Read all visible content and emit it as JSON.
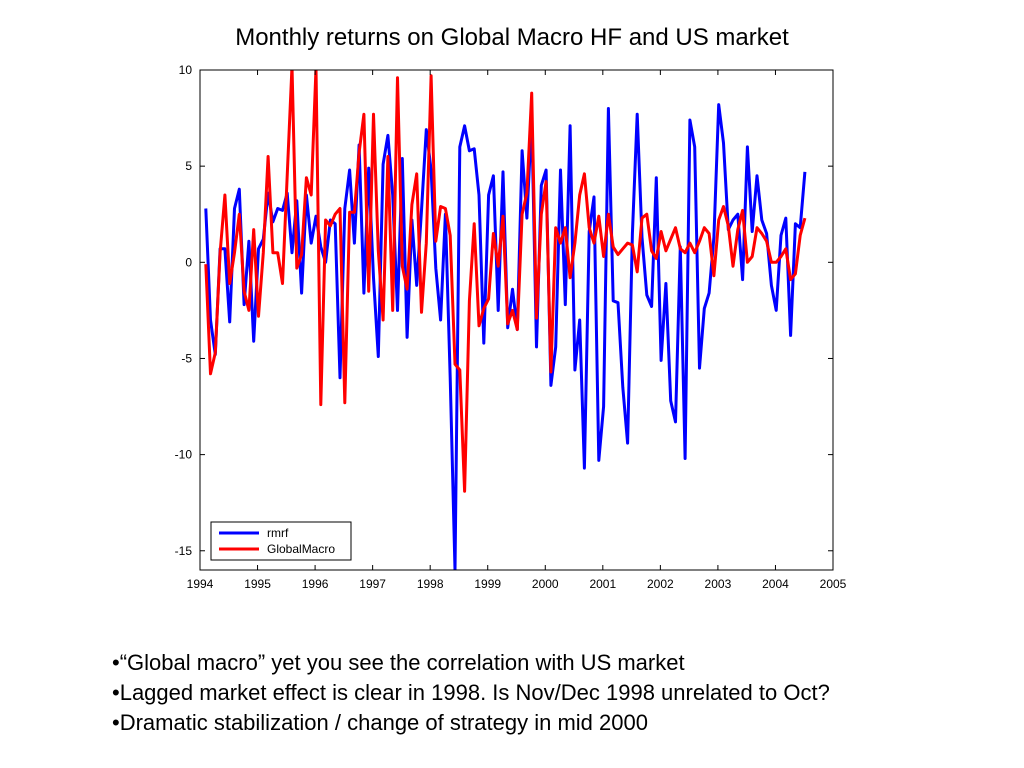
{
  "slide": {
    "bullets": [
      "•“Global macro” yet you see the correlation with US market",
      "•Lagged market effect is clear in 1998. Is Nov/Dec 1998 unrelated to Oct?",
      "•Dramatic stabilization / change of strategy in mid 2000"
    ]
  },
  "chart_data": {
    "type": "line",
    "title": "Monthly returns on Global Macro HF and US market",
    "xlabel": "",
    "ylabel": "",
    "xlim": [
      1994,
      2005
    ],
    "ylim": [
      -16,
      10
    ],
    "x_ticks": [
      "1994",
      "1995",
      "1996",
      "1997",
      "1998",
      "1999",
      "2000",
      "2001",
      "2002",
      "2003",
      "2004",
      "2005"
    ],
    "y_ticks": [
      10,
      5,
      0,
      -5,
      -10,
      -15
    ],
    "grid": false,
    "legend_position": "bottom-left",
    "series": [
      {
        "name": "rmrf",
        "color": "#0000ff",
        "x_start": 1994.1,
        "x_step": 0.0833,
        "values": [
          2.8,
          -3.0,
          -4.8,
          0.7,
          0.7,
          -3.1,
          2.8,
          3.8,
          -2.2,
          1.1,
          -4.1,
          0.7,
          1.2,
          3.6,
          2.1,
          2.8,
          2.7,
          3.6,
          0.5,
          3.2,
          -1.6,
          3.5,
          1.0,
          2.4,
          0.8,
          0.0,
          2.2,
          2.0,
          -6.0,
          2.8,
          4.8,
          1.0,
          6.1,
          -1.6,
          4.9,
          -0.8,
          -4.9,
          5.1,
          6.6,
          3.5,
          -2.5,
          5.4,
          -3.9,
          2.2,
          -1.2,
          2.7,
          6.9,
          4.8,
          -0.3,
          -3.0,
          2.5,
          -6.0,
          -16.0,
          6.0,
          7.1,
          5.8,
          5.9,
          3.5,
          -4.2,
          3.5,
          4.5,
          -2.5,
          4.7,
          -3.4,
          -1.4,
          -3.5,
          5.8,
          2.3,
          7.5,
          -4.4,
          4.0,
          4.8,
          -6.4,
          -4.4,
          4.8,
          -2.2,
          7.1,
          -5.6,
          -3.0,
          -10.7,
          1.6,
          3.4,
          -10.3,
          -7.5,
          8.0,
          -2.0,
          -2.1,
          -6.5,
          -9.4,
          1.5,
          7.7,
          1.3,
          -1.7,
          -2.3,
          4.4,
          -5.1,
          -1.1,
          -7.2,
          -8.3,
          0.8,
          -10.2,
          7.4,
          6.0,
          -5.5,
          -2.4,
          -1.6,
          1.3,
          8.2,
          6.2,
          1.7,
          2.2,
          2.5,
          -0.9,
          6.0,
          1.6,
          4.5,
          2.2,
          1.5,
          -1.2,
          -2.5,
          1.4,
          2.3,
          -3.8,
          2.0,
          1.8,
          4.7
        ]
      },
      {
        "name": "GlobalMacro",
        "color": "#ff0000",
        "x_start": 1994.1,
        "x_step": 0.0833,
        "values": [
          -0.1,
          -5.8,
          -4.7,
          0.5,
          3.5,
          -1.1,
          0.5,
          2.5,
          -1.5,
          -2.5,
          1.7,
          -2.8,
          0.5,
          5.5,
          0.5,
          0.5,
          -1.1,
          4.5,
          10.2,
          -0.3,
          0.4,
          4.4,
          3.5,
          10.1,
          -7.4,
          2.2,
          1.9,
          2.5,
          2.8,
          -7.3,
          2.6,
          2.6,
          5.7,
          7.7,
          -1.5,
          7.7,
          0.6,
          -3.0,
          5.5,
          -2.5,
          9.6,
          -0.2,
          -1.4,
          3.0,
          4.6,
          -2.6,
          1.0,
          9.7,
          1.1,
          2.9,
          2.8,
          1.4,
          -5.3,
          -5.6,
          -11.9,
          -2.0,
          2.0,
          -3.3,
          -2.4,
          -1.9,
          1.5,
          -0.2,
          2.4,
          -3.2,
          -2.5,
          -3.5,
          2.5,
          3.6,
          8.8,
          -2.9,
          2.5,
          4.2,
          -5.7,
          1.8,
          1.0,
          1.8,
          -0.8,
          1.0,
          3.5,
          4.6,
          1.8,
          1.0,
          2.4,
          0.3,
          2.5,
          0.8,
          0.4,
          0.7,
          1.0,
          0.9,
          -0.5,
          2.3,
          2.5,
          0.6,
          0.2,
          1.6,
          0.6,
          1.2,
          1.8,
          0.7,
          0.5,
          1.0,
          0.5,
          1.1,
          1.8,
          1.5,
          -0.7,
          2.2,
          2.9,
          1.9,
          -0.2,
          1.7,
          2.7,
          0.0,
          0.3,
          1.8,
          1.5,
          1.1,
          0.0,
          0.0,
          0.3,
          0.7,
          -0.9,
          -0.6,
          1.4,
          2.3
        ]
      }
    ]
  }
}
